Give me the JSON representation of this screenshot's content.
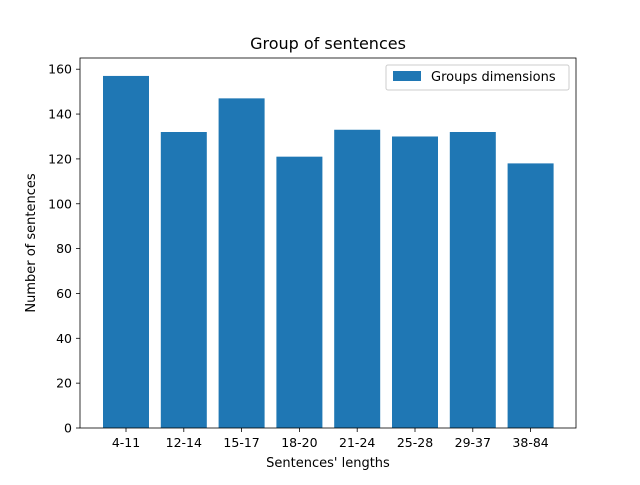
{
  "chart_data": {
    "type": "bar",
    "title": "Group of sentences",
    "xlabel": "Sentences' lengths",
    "ylabel": "Number of sentences",
    "categories": [
      "4-11",
      "12-14",
      "15-17",
      "18-20",
      "21-24",
      "25-28",
      "29-37",
      "38-84"
    ],
    "series": [
      {
        "name": "Groups dimensions",
        "values": [
          157,
          132,
          147,
          121,
          133,
          130,
          132,
          118
        ],
        "color": "#1f77b4"
      }
    ],
    "ylim": [
      0,
      165
    ],
    "yticks": [
      0,
      20,
      40,
      60,
      80,
      100,
      120,
      140,
      160
    ],
    "grid": false,
    "legend_position": "top-right"
  }
}
